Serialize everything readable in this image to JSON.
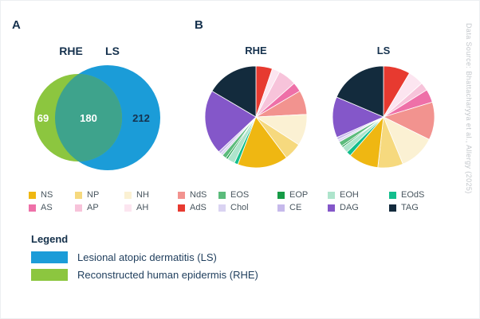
{
  "panels": {
    "a": "A",
    "b": "B"
  },
  "category_colors": {
    "NS": "#efb712",
    "NP": "#f6d97e",
    "NH": "#fbf1d3",
    "NdS": "#f2938f",
    "EOS": "#5bbb7b",
    "EOP": "#169b46",
    "EOH": "#aee4cc",
    "EOdS": "#13be8d",
    "AS": "#ee70a8",
    "AP": "#f7c3da",
    "AH": "#fce5f0",
    "AdS": "#e73a30",
    "Chol": "#dad3f2",
    "CE": "#c6b9eb",
    "DAG": "#8457c9",
    "TAG": "#132b3d"
  },
  "category_legend": {
    "rows": [
      [
        "NS",
        "NP",
        "NH",
        "NdS",
        "EOS",
        "EOP",
        "EOH",
        "EOdS"
      ],
      [
        "AS",
        "AP",
        "AH",
        "AdS",
        "Chol",
        "CE",
        "DAG",
        "TAG"
      ]
    ]
  },
  "chart_data": [
    {
      "type": "venn",
      "panel": "A",
      "sets": [
        {
          "label": "RHE",
          "unique": 69,
          "color": "#8cc63f"
        },
        {
          "label": "LS",
          "unique": 212,
          "color": "#1b9cd8"
        }
      ],
      "overlap": 180,
      "overlap_color": "#3ea38c"
    },
    {
      "type": "pie",
      "title": "RHE",
      "note": "slices listed clockwise from 12 o'clock, values are percent",
      "labels": [
        "AdS",
        "AH",
        "AP",
        "AS",
        "NdS",
        "NH",
        "NP",
        "NS",
        "EOdS",
        "EOH",
        "EOP",
        "EOS",
        "Chol",
        "CE",
        "DAG",
        "TAG"
      ],
      "values": [
        5.2,
        2.5,
        5.8,
        3.0,
        7.7,
        10.0,
        5.6,
        16.0,
        1.2,
        2.4,
        0.6,
        1.4,
        0.8,
        0.8,
        20.5,
        16.5
      ]
    },
    {
      "type": "pie",
      "title": "LS",
      "note": "slices listed clockwise from 12 o'clock, values are percent",
      "labels": [
        "AdS",
        "AH",
        "AP",
        "AS",
        "NdS",
        "NH",
        "NP",
        "NS",
        "EOdS",
        "EOH",
        "EOP",
        "EOS",
        "Chol",
        "CE",
        "DAG",
        "TAG"
      ],
      "values": [
        8.5,
        5.0,
        2.6,
        4.2,
        12.0,
        11.5,
        8.0,
        9.5,
        1.5,
        2.0,
        0.5,
        1.5,
        0.8,
        0.8,
        13.0,
        18.6
      ]
    }
  ],
  "legend": {
    "heading": "Legend",
    "items": [
      {
        "color": "#1b9cd8",
        "label": "Lesional atopic dermatitis (LS)"
      },
      {
        "color": "#8cc63f",
        "label": "Reconstructed human epidermis (RHE)"
      }
    ]
  },
  "source_note": "Data Source: Bhattacharyya et al., Allergy (2025)"
}
